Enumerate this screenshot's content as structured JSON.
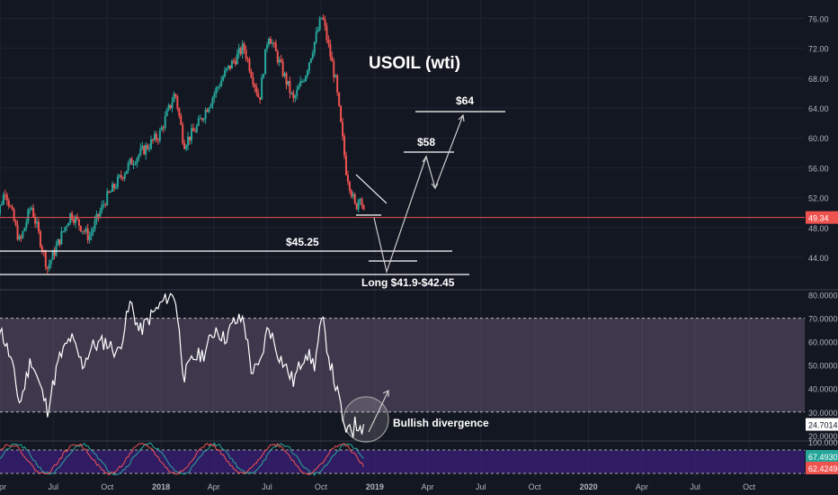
{
  "chart_data": [
    {
      "type": "candlestick",
      "title": "USOIL (wti)",
      "xlabel": "",
      "ylabel": "",
      "ylim": [
        40.5,
        77.5
      ],
      "y_ticks": [
        "76.00",
        "72.00",
        "68.00",
        "64.00",
        "60.00",
        "56.00",
        "52.00",
        "48.00",
        "44.00"
      ],
      "last_price": "49.34",
      "x_ticks": [
        "Apr",
        "Jul",
        "Oct",
        "2018",
        "Apr",
        "Jul",
        "Oct",
        "2019",
        "Apr",
        "Jul",
        "Oct",
        "2020",
        "Apr",
        "Jul",
        "Oct"
      ],
      "colors": {
        "up": "#26a69a",
        "down": "#ef5350",
        "background": "#131722",
        "grid": "#1f2433",
        "price_line": "#ef5350",
        "annotation": "#ffffff"
      },
      "close_path": [
        {
          "date": "2017-03-20",
          "close": 47.6
        },
        {
          "date": "2017-04-10",
          "close": 53.1
        },
        {
          "date": "2017-05-05",
          "close": 45.9
        },
        {
          "date": "2017-05-24",
          "close": 51.0
        },
        {
          "date": "2017-06-21",
          "close": 42.6
        },
        {
          "date": "2017-07-31",
          "close": 49.9
        },
        {
          "date": "2017-08-31",
          "close": 46.7
        },
        {
          "date": "2017-09-28",
          "close": 51.7
        },
        {
          "date": "2017-11-10",
          "close": 56.7
        },
        {
          "date": "2017-12-29",
          "close": 60.4
        },
        {
          "date": "2018-01-25",
          "close": 66.1
        },
        {
          "date": "2018-02-09",
          "close": 59.2
        },
        {
          "date": "2018-03-02",
          "close": 61.3
        },
        {
          "date": "2018-04-19",
          "close": 68.5
        },
        {
          "date": "2018-05-22",
          "close": 72.2
        },
        {
          "date": "2018-06-18",
          "close": 65.1
        },
        {
          "date": "2018-07-03",
          "close": 74.1
        },
        {
          "date": "2018-08-15",
          "close": 65.0
        },
        {
          "date": "2018-09-05",
          "close": 68.7
        },
        {
          "date": "2018-10-03",
          "close": 76.4
        },
        {
          "date": "2018-10-26",
          "close": 67.6
        },
        {
          "date": "2018-11-13",
          "close": 55.7
        },
        {
          "date": "2018-11-29",
          "close": 50.5
        },
        {
          "date": "2018-12-07",
          "close": 52.6
        },
        {
          "date": "2018-12-14",
          "close": 49.34
        }
      ],
      "annotations": [
        {
          "text": "USOIL (wti)",
          "kind": "title"
        },
        {
          "text": "$64",
          "kind": "target"
        },
        {
          "text": "$58",
          "kind": "target"
        },
        {
          "text": "$45.25",
          "kind": "level"
        },
        {
          "text": "Long $41.9-$42.45",
          "kind": "zone"
        }
      ]
    },
    {
      "type": "line",
      "title": "",
      "ylim": [
        18,
        81
      ],
      "y_ticks": [
        "80.0000",
        "70.0000",
        "60.0000",
        "50.0000",
        "40.0000",
        "30.0000",
        "20.0000"
      ],
      "band": [
        30,
        70
      ],
      "last_value": "24.7014",
      "annotations": [
        {
          "text": "Bullish divergence"
        }
      ],
      "series": [
        {
          "color": "#ffffff",
          "points": [
            {
              "date": "2017-03-20",
              "value": 48
            },
            {
              "date": "2017-04-01",
              "value": 66
            },
            {
              "date": "2017-04-20",
              "value": 52
            },
            {
              "date": "2017-05-05",
              "value": 33
            },
            {
              "date": "2017-05-24",
              "value": 53
            },
            {
              "date": "2017-06-21",
              "value": 31
            },
            {
              "date": "2017-07-10",
              "value": 52
            },
            {
              "date": "2017-07-31",
              "value": 62
            },
            {
              "date": "2017-08-20",
              "value": 50
            },
            {
              "date": "2017-09-05",
              "value": 58
            },
            {
              "date": "2017-09-28",
              "value": 60
            },
            {
              "date": "2017-10-20",
              "value": 55
            },
            {
              "date": "2017-11-10",
              "value": 77
            },
            {
              "date": "2017-11-25",
              "value": 64
            },
            {
              "date": "2017-12-15",
              "value": 71
            },
            {
              "date": "2017-12-29",
              "value": 75
            },
            {
              "date": "2018-01-10",
              "value": 79
            },
            {
              "date": "2018-01-25",
              "value": 80
            },
            {
              "date": "2018-02-09",
              "value": 45
            },
            {
              "date": "2018-02-25",
              "value": 53
            },
            {
              "date": "2018-03-15",
              "value": 55
            },
            {
              "date": "2018-04-05",
              "value": 66
            },
            {
              "date": "2018-04-19",
              "value": 61
            },
            {
              "date": "2018-05-05",
              "value": 68
            },
            {
              "date": "2018-05-22",
              "value": 70
            },
            {
              "date": "2018-06-05",
              "value": 47
            },
            {
              "date": "2018-06-18",
              "value": 49
            },
            {
              "date": "2018-07-03",
              "value": 67
            },
            {
              "date": "2018-07-20",
              "value": 55
            },
            {
              "date": "2018-08-15",
              "value": 43
            },
            {
              "date": "2018-09-05",
              "value": 56
            },
            {
              "date": "2018-09-20",
              "value": 50
            },
            {
              "date": "2018-10-03",
              "value": 70
            },
            {
              "date": "2018-10-15",
              "value": 53
            },
            {
              "date": "2018-10-26",
              "value": 41
            },
            {
              "date": "2018-11-05",
              "value": 31
            },
            {
              "date": "2018-11-13",
              "value": 18
            },
            {
              "date": "2018-11-18",
              "value": 27
            },
            {
              "date": "2018-11-24",
              "value": 21
            },
            {
              "date": "2018-11-29",
              "value": 26
            },
            {
              "date": "2018-12-03",
              "value": 22
            },
            {
              "date": "2018-12-07",
              "value": 27
            },
            {
              "date": "2018-12-11",
              "value": 22
            },
            {
              "date": "2018-12-14",
              "value": 24.7014
            }
          ]
        }
      ]
    },
    {
      "type": "line",
      "title": "",
      "y_ticks": [
        "100.0000"
      ],
      "last_values": [
        "67.4930",
        "62.4249"
      ],
      "ylim": [
        0,
        100
      ],
      "series": [
        {
          "color": "#26a69a",
          "values": []
        },
        {
          "color": "#ef5350",
          "values": []
        }
      ]
    }
  ]
}
